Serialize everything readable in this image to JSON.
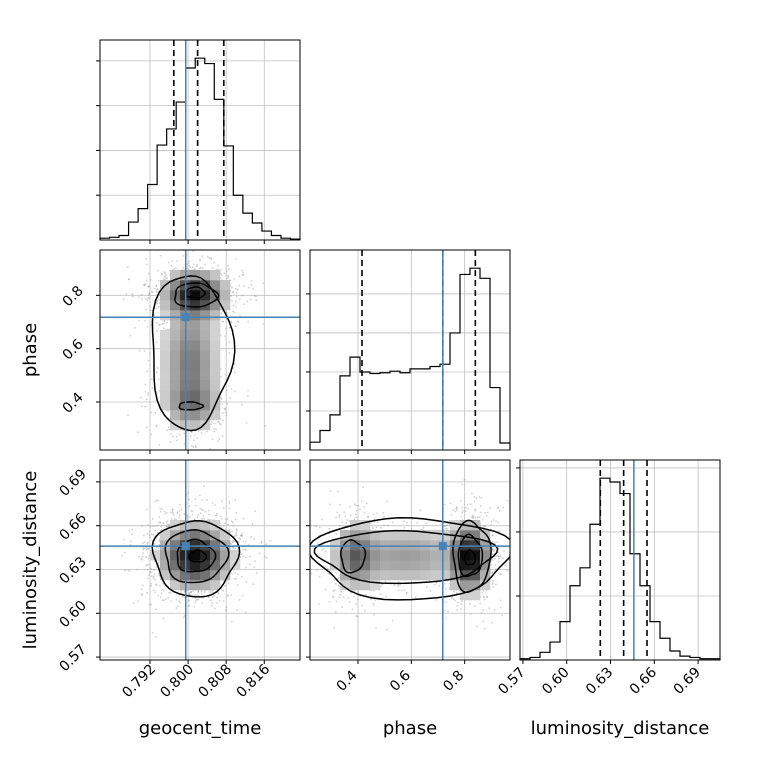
{
  "chart_data": {
    "type": "corner",
    "truth_color": "#4682b4",
    "parameters": [
      {
        "name": "geocent_time",
        "label": "geocent_time",
        "range": [
          0.7815,
          0.8235
        ],
        "ticks": [
          0.792,
          0.8,
          0.808,
          0.816
        ],
        "tick_labels": [
          "0.792",
          "0.800",
          "0.808",
          "0.816"
        ],
        "truth": 0.7995,
        "quantiles": [
          0.797,
          0.802,
          0.8075
        ],
        "histogram": {
          "edges_start": 0.7815,
          "bin_width": 0.002,
          "counts": [
            0.02,
            0.03,
            0.05,
            0.2,
            0.35,
            0.62,
            1.06,
            1.24,
            1.54,
            1.92,
            2.03,
            1.97,
            1.57,
            1.05,
            0.5,
            0.3,
            0.19,
            0.1,
            0.05,
            0.02,
            0.01
          ]
        }
      },
      {
        "name": "phase",
        "label": "phase",
        "range": [
          0.22,
          0.97
        ],
        "ticks": [
          0.4,
          0.6,
          0.8
        ],
        "tick_labels": [
          "0.4",
          "0.6",
          "0.8"
        ],
        "truth": 0.718,
        "quantiles": [
          0.415,
          0.718,
          0.84
        ],
        "histogram": {
          "edges_start": 0.22,
          "bin_width": 0.0375,
          "counts": [
            0.1,
            0.25,
            0.45,
            0.95,
            1.19,
            1.0,
            0.98,
            0.99,
            1.01,
            0.99,
            1.04,
            1.04,
            1.07,
            1.1,
            1.5,
            2.25,
            2.33,
            2.2,
            0.8,
            0.09
          ]
        }
      },
      {
        "name": "luminosity_distance",
        "label": "luminosity_distance",
        "range": [
          0.568,
          0.705
        ],
        "ticks": [
          0.57,
          0.6,
          0.63,
          0.66,
          0.69
        ],
        "tick_labels": [
          "0.57",
          "0.60",
          "0.63",
          "0.66",
          "0.69"
        ],
        "truth": 0.646,
        "quantiles": [
          0.623,
          0.639,
          0.655
        ],
        "histogram": {
          "edges_start": 0.568,
          "bin_width": 0.00685,
          "counts": [
            0.01,
            0.02,
            0.06,
            0.14,
            0.3,
            0.58,
            0.72,
            1.06,
            1.42,
            1.39,
            1.3,
            0.83,
            0.58,
            0.3,
            0.17,
            0.07,
            0.03,
            0.02,
            0.01,
            0.01
          ]
        }
      }
    ],
    "panels_2d": [
      {
        "x": "geocent_time",
        "y": "phase",
        "modes": [
          {
            "cx": 0.8015,
            "cy": 0.805,
            "sx": 0.0038,
            "sy": 0.05,
            "w": 1.0
          },
          {
            "cx": 0.8005,
            "cy": 0.55,
            "sx": 0.0035,
            "sy": 0.14,
            "w": 0.55
          },
          {
            "cx": 0.801,
            "cy": 0.39,
            "sx": 0.0035,
            "sy": 0.05,
            "w": 0.35
          }
        ],
        "contour_levels": [
          [
            {
              "cx": 0.8015,
              "cy": 0.81,
              "rx": 0.002,
              "ry": 0.02
            },
            {
              "cx": 0.8005,
              "cy": 0.385,
              "rx": 0.0025,
              "ry": 0.015
            }
          ],
          [
            {
              "cx": 0.8015,
              "cy": 0.8,
              "rx": 0.0045,
              "ry": 0.045
            }
          ],
          [
            {
              "cx": 0.8005,
              "cy": 0.59,
              "rx": 0.0085,
              "ry": 0.29
            }
          ]
        ]
      },
      {
        "x": "geocent_time",
        "y": "luminosity_distance",
        "modes": [
          {
            "cx": 0.8015,
            "cy": 0.639,
            "sx": 0.0042,
            "sy": 0.0125,
            "w": 1.0
          }
        ],
        "contour_levels": [
          [
            {
              "cx": 0.802,
              "cy": 0.639,
              "rx": 0.0018,
              "ry": 0.004
            }
          ],
          [
            {
              "cx": 0.8015,
              "cy": 0.639,
              "rx": 0.004,
              "ry": 0.011
            }
          ],
          [
            {
              "cx": 0.8015,
              "cy": 0.639,
              "rx": 0.0065,
              "ry": 0.018
            }
          ],
          [
            {
              "cx": 0.8015,
              "cy": 0.638,
              "rx": 0.0088,
              "ry": 0.026
            }
          ]
        ]
      },
      {
        "x": "phase",
        "y": "luminosity_distance",
        "modes": [
          {
            "cx": 0.82,
            "cy": 0.638,
            "sx": 0.04,
            "sy": 0.013,
            "w": 1.0
          },
          {
            "cx": 0.39,
            "cy": 0.639,
            "sx": 0.045,
            "sy": 0.013,
            "w": 0.5
          },
          {
            "cx": 0.58,
            "cy": 0.639,
            "sx": 0.15,
            "sy": 0.013,
            "w": 0.35
          }
        ],
        "contour_levels": [
          [
            {
              "cx": 0.82,
              "cy": 0.638,
              "rx": 0.02,
              "ry": 0.005
            }
          ],
          [
            {
              "cx": 0.82,
              "cy": 0.639,
              "rx": 0.045,
              "ry": 0.014
            },
            {
              "cx": 0.38,
              "cy": 0.639,
              "rx": 0.045,
              "ry": 0.011
            }
          ],
          [
            {
              "cx": 0.825,
              "cy": 0.639,
              "rx": 0.07,
              "ry": 0.024
            },
            {
              "cx": 0.58,
              "cy": 0.639,
              "rx": 0.33,
              "ry": 0.018
            }
          ],
          [
            {
              "cx": 0.6,
              "cy": 0.638,
              "rx": 0.37,
              "ry": 0.028
            }
          ]
        ]
      }
    ]
  }
}
